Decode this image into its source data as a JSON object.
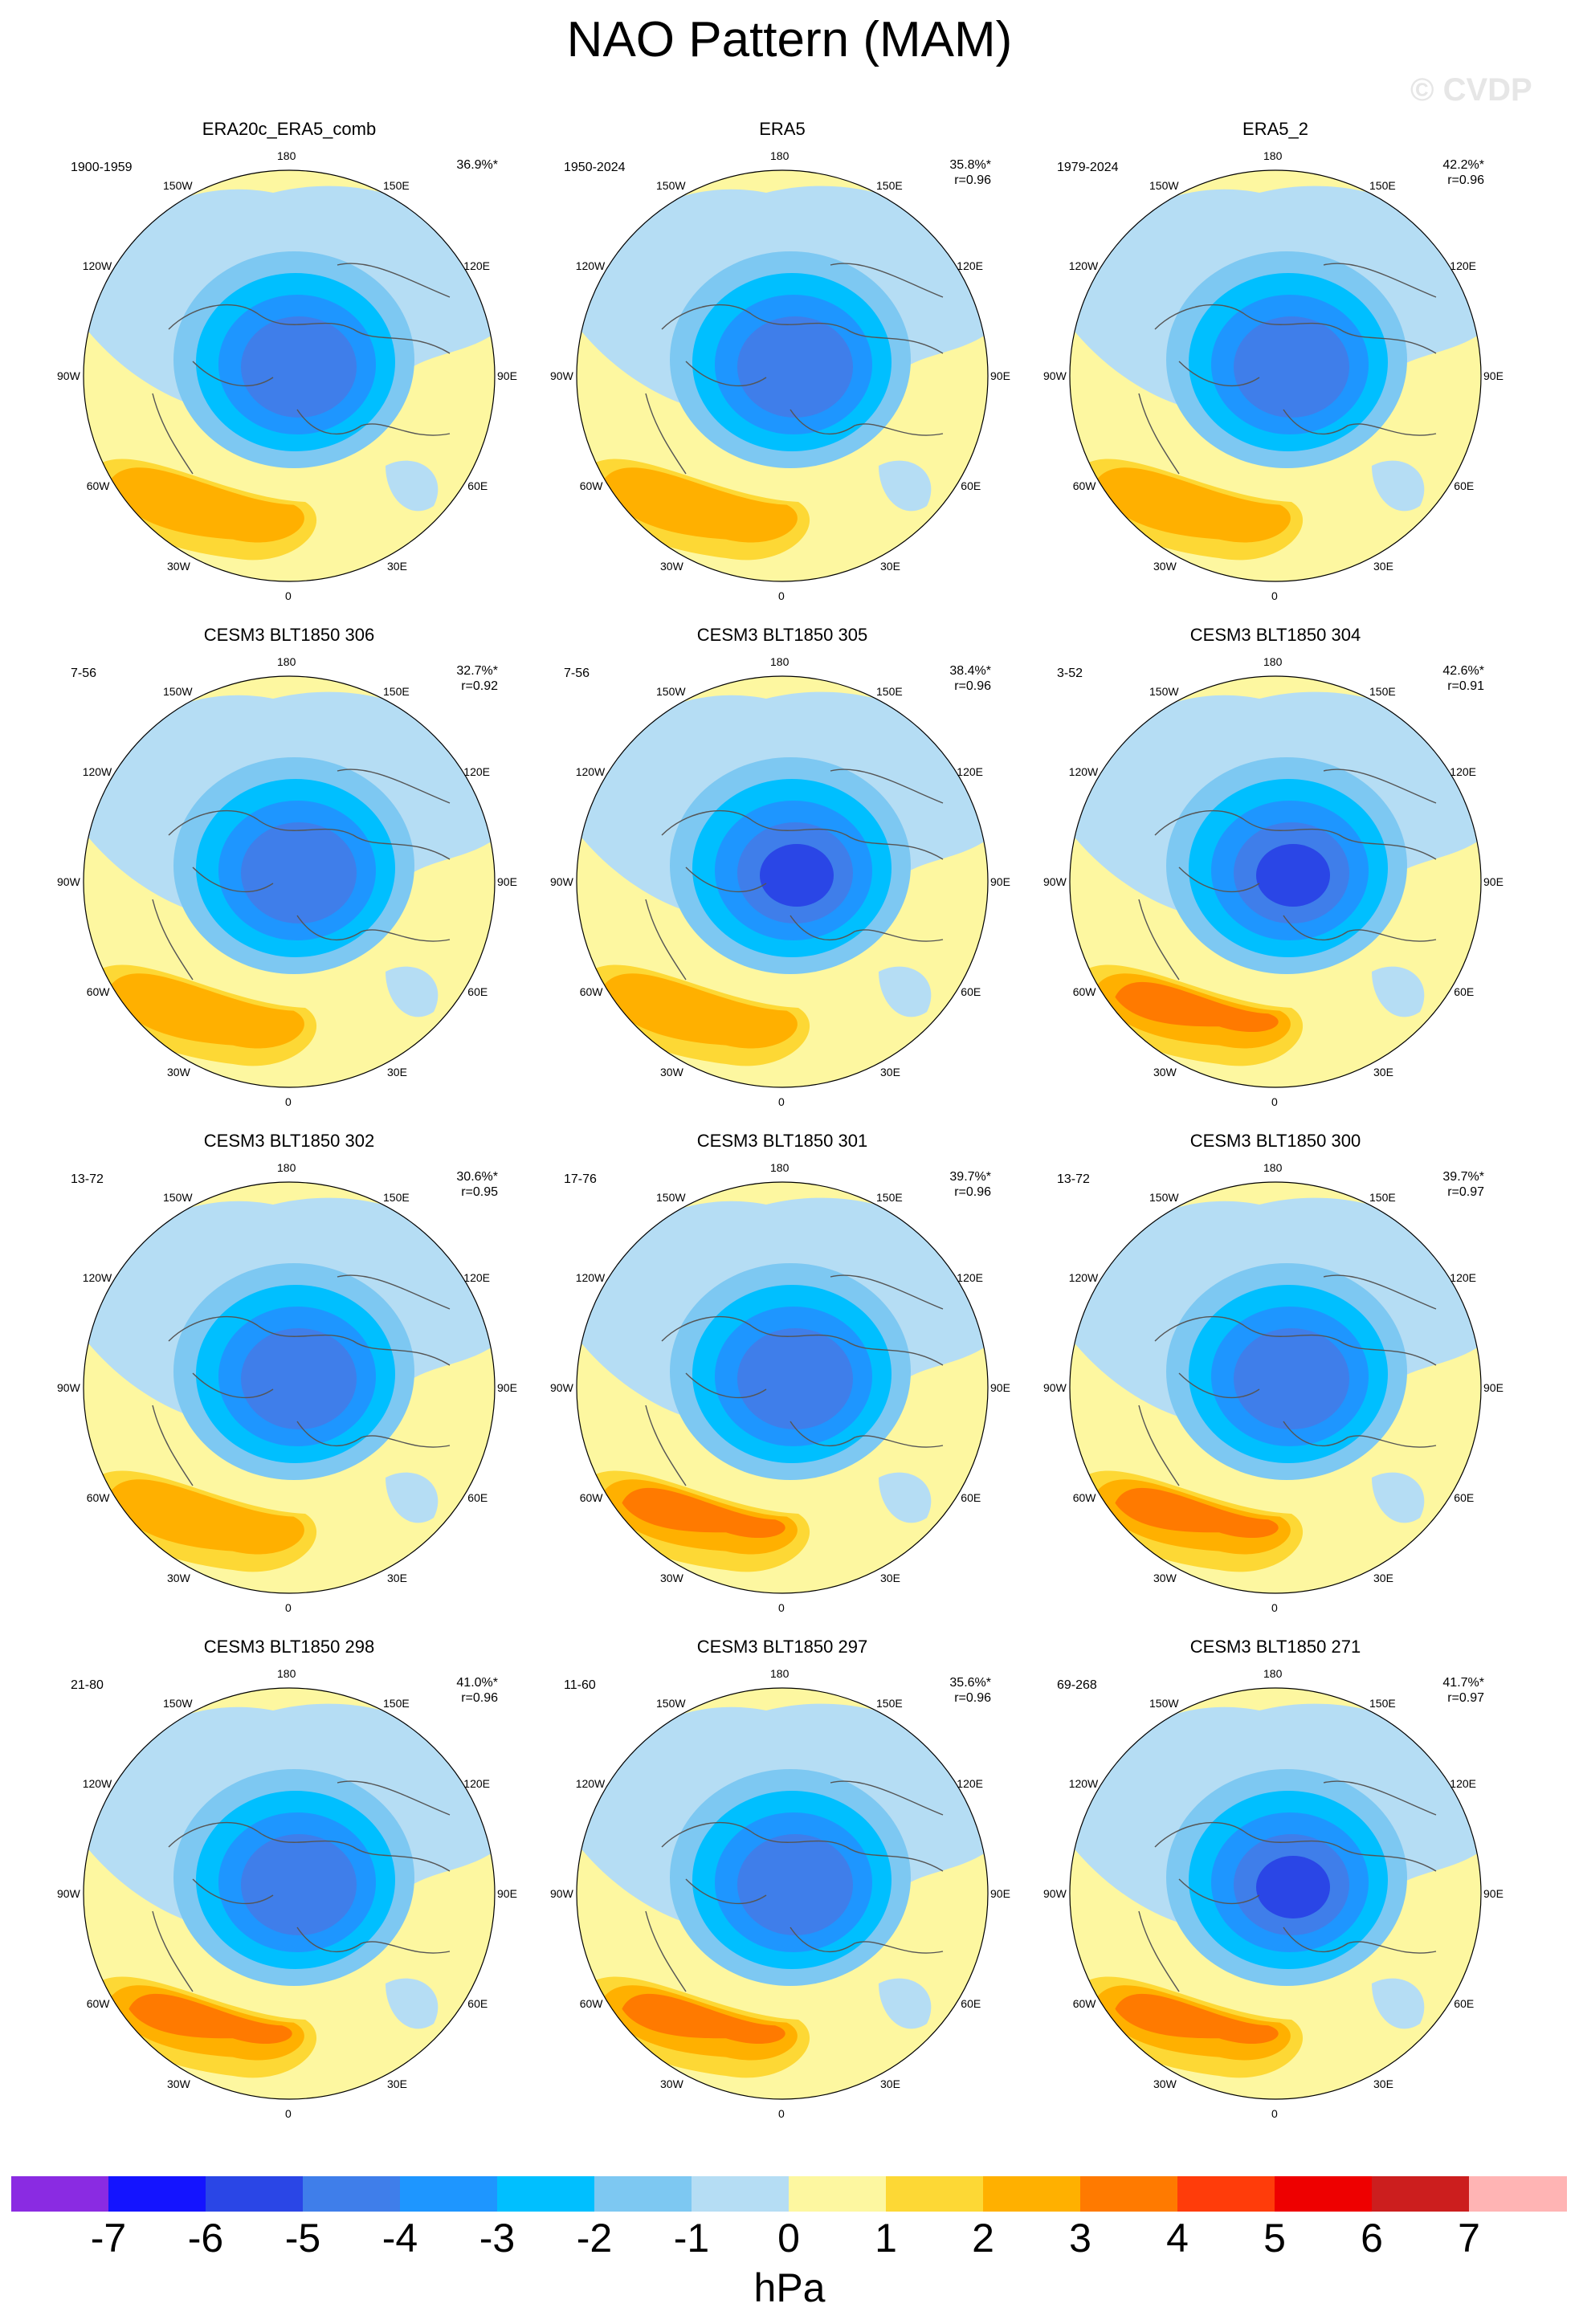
{
  "figure": {
    "title": "NAO Pattern (MAM)",
    "watermark": "© CVDP",
    "colorbar_unit": "hPa"
  },
  "colors": {
    "neg_fill": "#b5ddf4",
    "pos_fill": "#fdf7a0",
    "coast": "#555555"
  },
  "chart_data": {
    "type": "polar-stereographic contour map panels",
    "variable": "NAO sea level pressure anomaly",
    "units": "hPa",
    "longitude_labels": [
      "180",
      "150E",
      "120E",
      "90E",
      "60E",
      "30E",
      "0",
      "30W",
      "60W",
      "90W",
      "120W",
      "150W"
    ],
    "colorbar": {
      "levels": [
        -7,
        -6,
        -5,
        -4,
        -3,
        -2,
        -1,
        0,
        1,
        2,
        3,
        4,
        5,
        6,
        7
      ],
      "tick_labels": [
        "-7",
        "-6",
        "-5",
        "-4",
        "-3",
        "-2",
        "-1",
        "0",
        "1",
        "2",
        "3",
        "4",
        "5",
        "6",
        "7"
      ],
      "colors": [
        "#8a2be2",
        "#1414ff",
        "#2a46e6",
        "#3f7eea",
        "#1e96ff",
        "#00bfff",
        "#7dc8f2",
        "#b5ddf4",
        "#fdf7a0",
        "#fdd835",
        "#ffb000",
        "#ff7a00",
        "#ff3c0a",
        "#ee0000",
        "#cc1e1e",
        "#ffb4b4"
      ]
    },
    "panels": [
      {
        "title": "ERA20c_ERA5_comb",
        "years": "1900-1959",
        "pct_variance": "36.9%*",
        "pattern_corr": "",
        "min_hpa": -4,
        "max_hpa": 2
      },
      {
        "title": "ERA5",
        "years": "1950-2024",
        "pct_variance": "35.8%*",
        "pattern_corr": "r=0.96",
        "min_hpa": -4,
        "max_hpa": 2
      },
      {
        "title": "ERA5_2",
        "years": "1979-2024",
        "pct_variance": "42.2%*",
        "pattern_corr": "r=0.96",
        "min_hpa": -4,
        "max_hpa": 2
      },
      {
        "title": "CESM3 BLT1850 306",
        "years": "7-56",
        "pct_variance": "32.7%*",
        "pattern_corr": "r=0.92",
        "min_hpa": -4,
        "max_hpa": 2
      },
      {
        "title": "CESM3 BLT1850 305",
        "years": "7-56",
        "pct_variance": "38.4%*",
        "pattern_corr": "r=0.96",
        "min_hpa": -5,
        "max_hpa": 2
      },
      {
        "title": "CESM3 BLT1850 304",
        "years": "3-52",
        "pct_variance": "42.6%*",
        "pattern_corr": "r=0.91",
        "min_hpa": -5,
        "max_hpa": 3
      },
      {
        "title": "CESM3 BLT1850 302",
        "years": "13-72",
        "pct_variance": "30.6%*",
        "pattern_corr": "r=0.95",
        "min_hpa": -4,
        "max_hpa": 2
      },
      {
        "title": "CESM3 BLT1850 301",
        "years": "17-76",
        "pct_variance": "39.7%*",
        "pattern_corr": "r=0.96",
        "min_hpa": -4,
        "max_hpa": 3
      },
      {
        "title": "CESM3 BLT1850 300",
        "years": "13-72",
        "pct_variance": "39.7%*",
        "pattern_corr": "r=0.97",
        "min_hpa": -4,
        "max_hpa": 3
      },
      {
        "title": "CESM3 BLT1850 298",
        "years": "21-80",
        "pct_variance": "41.0%*",
        "pattern_corr": "r=0.96",
        "min_hpa": -4,
        "max_hpa": 3
      },
      {
        "title": "CESM3 BLT1850 297",
        "years": "11-60",
        "pct_variance": "35.6%*",
        "pattern_corr": "r=0.96",
        "min_hpa": -4,
        "max_hpa": 3
      },
      {
        "title": "CESM3 BLT1850 271",
        "years": "69-268",
        "pct_variance": "41.7%*",
        "pattern_corr": "r=0.97",
        "min_hpa": -5,
        "max_hpa": 3
      }
    ]
  }
}
